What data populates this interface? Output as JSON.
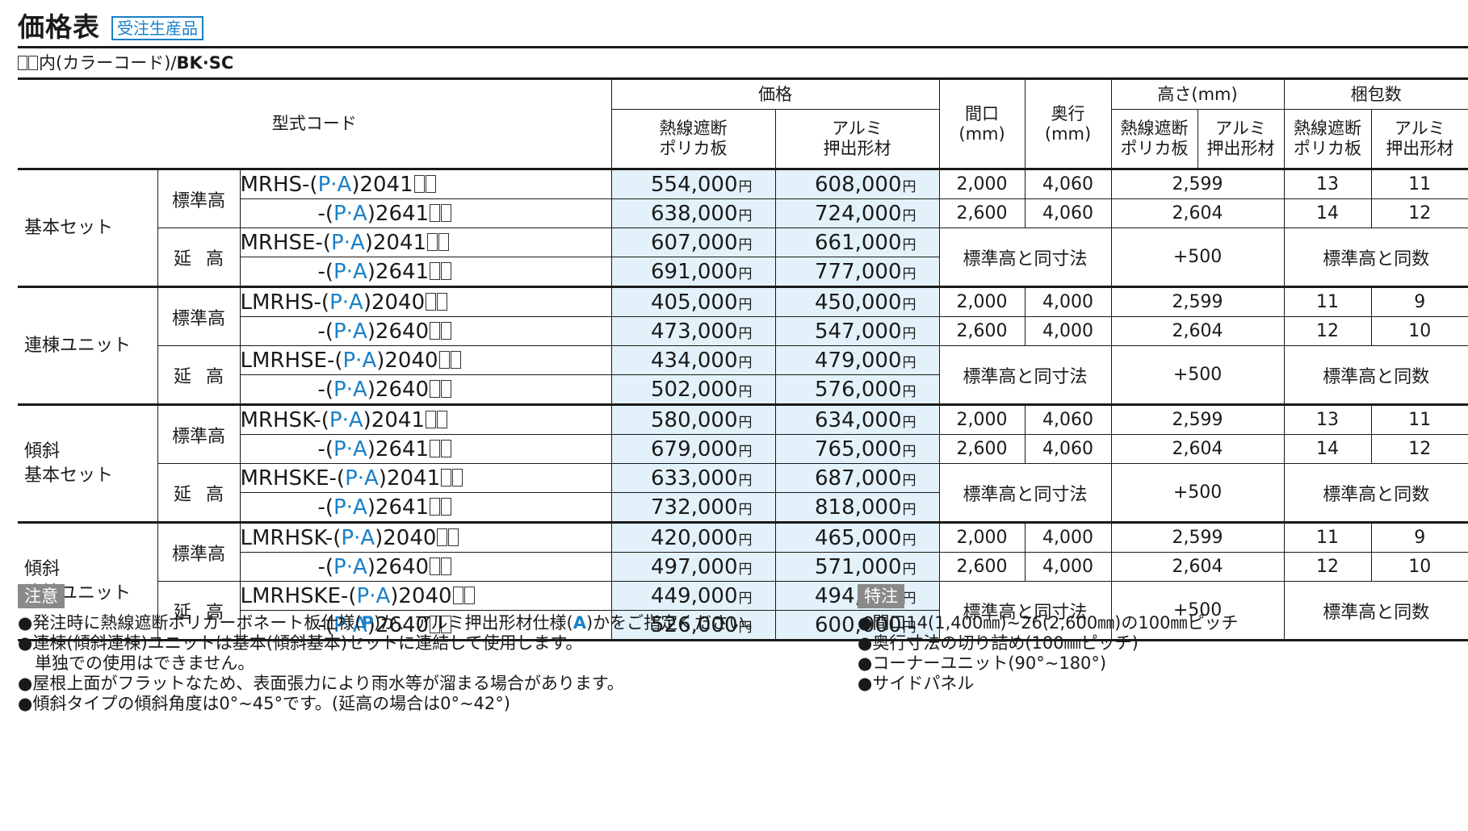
{
  "title": "価格表",
  "badge": "受注生産品",
  "color_note": {
    "prefix": "内(カラーコード)/",
    "codes": "BK·SC"
  },
  "header": {
    "model": "型式コード",
    "price": "価格",
    "col_poly": "熱線遮断ポリカ板",
    "col_poly_l1": "熱線遮断",
    "col_poly_l2": "ポリカ板",
    "col_alu_l1": "アルミ",
    "col_alu_l2": "押出形材",
    "width_l1": "間口",
    "width_l2": "(mm)",
    "depth_l1": "奥行",
    "depth_l2": "(mm)",
    "height": "高さ(mm)",
    "pack": "梱包数"
  },
  "groups": [
    {
      "category": "基本セット",
      "subs": [
        {
          "label": "標準高",
          "rows": [
            {
              "prefix": "MRHS-",
              "size": "2041",
              "poly": "554,000",
              "alu": "608,000",
              "w": "2,000",
              "d": "4,060",
              "h": "2,599",
              "pp": "13",
              "pa": "11"
            },
            {
              "prefix": "-",
              "size": "2641",
              "poly": "638,000",
              "alu": "724,000",
              "w": "2,600",
              "d": "4,060",
              "h": "2,604",
              "pp": "14",
              "pa": "12"
            }
          ]
        },
        {
          "label": "延高",
          "merged": {
            "dims": "標準高と同寸法",
            "h": "+500",
            "pack": "標準高と同数"
          },
          "rows": [
            {
              "prefix": "MRHSE-",
              "size": "2041",
              "poly": "607,000",
              "alu": "661,000"
            },
            {
              "prefix": "-",
              "size": "2641",
              "poly": "691,000",
              "alu": "777,000"
            }
          ]
        }
      ]
    },
    {
      "category": "連棟ユニット",
      "subs": [
        {
          "label": "標準高",
          "rows": [
            {
              "prefix": "LMRHS-",
              "size": "2040",
              "poly": "405,000",
              "alu": "450,000",
              "w": "2,000",
              "d": "4,000",
              "h": "2,599",
              "pp": "11",
              "pa": "9"
            },
            {
              "prefix": "-",
              "size": "2640",
              "poly": "473,000",
              "alu": "547,000",
              "w": "2,600",
              "d": "4,000",
              "h": "2,604",
              "pp": "12",
              "pa": "10"
            }
          ]
        },
        {
          "label": "延高",
          "merged": {
            "dims": "標準高と同寸法",
            "h": "+500",
            "pack": "標準高と同数"
          },
          "rows": [
            {
              "prefix": "LMRHSE-",
              "size": "2040",
              "poly": "434,000",
              "alu": "479,000"
            },
            {
              "prefix": "-",
              "size": "2640",
              "poly": "502,000",
              "alu": "576,000"
            }
          ]
        }
      ]
    },
    {
      "category": "傾斜 基本セット",
      "category_l1": "傾斜",
      "category_l2": "基本セット",
      "subs": [
        {
          "label": "標準高",
          "rows": [
            {
              "prefix": "MRHSK-",
              "size": "2041",
              "poly": "580,000",
              "alu": "634,000",
              "w": "2,000",
              "d": "4,060",
              "h": "2,599",
              "pp": "13",
              "pa": "11"
            },
            {
              "prefix": "-",
              "size": "2641",
              "poly": "679,000",
              "alu": "765,000",
              "w": "2,600",
              "d": "4,060",
              "h": "2,604",
              "pp": "14",
              "pa": "12"
            }
          ]
        },
        {
          "label": "延高",
          "merged": {
            "dims": "標準高と同寸法",
            "h": "+500",
            "pack": "標準高と同数"
          },
          "rows": [
            {
              "prefix": "MRHSKE-",
              "size": "2041",
              "poly": "633,000",
              "alu": "687,000"
            },
            {
              "prefix": "-",
              "size": "2641",
              "poly": "732,000",
              "alu": "818,000"
            }
          ]
        }
      ]
    },
    {
      "category": "傾斜 連棟ユニット",
      "category_l1": "傾斜",
      "category_l2": "連棟ユニット",
      "subs": [
        {
          "label": "標準高",
          "rows": [
            {
              "prefix": "LMRHSK-",
              "size": "2040",
              "poly": "420,000",
              "alu": "465,000",
              "w": "2,000",
              "d": "4,000",
              "h": "2,599",
              "pp": "11",
              "pa": "9"
            },
            {
              "prefix": "-",
              "size": "2640",
              "poly": "497,000",
              "alu": "571,000",
              "w": "2,600",
              "d": "4,000",
              "h": "2,604",
              "pp": "12",
              "pa": "10"
            }
          ]
        },
        {
          "label": "延高",
          "merged": {
            "dims": "標準高と同寸法",
            "h": "+500",
            "pack": "標準高と同数"
          },
          "rows": [
            {
              "prefix": "LMRHSKE-",
              "size": "2040",
              "poly": "449,000",
              "alu": "494,000"
            },
            {
              "prefix": "-",
              "size": "2640",
              "poly": "526,000",
              "alu": "600,000"
            }
          ]
        }
      ]
    }
  ],
  "model_pa": {
    "open": "(",
    "p": "P",
    "dot": "·",
    "a": "A",
    "close": ")"
  },
  "yen": "円",
  "notes": {
    "tag": "注意",
    "l1_a": "●発注時に熱線遮断ポリカーボネート板仕様(",
    "l1_p": "P",
    "l1_b": ")か、アルミ押出形材仕様(",
    "l1_a2": "A",
    "l1_c": ")かをご指定ください。",
    "l2": "●連棟(傾斜連棟)ユニットは基本(傾斜基本)セットに連結して使用します。",
    "l3": "単独での使用はできません。",
    "l4": "●屋根上面がフラットなため、表面張力により雨水等が溜まる場合があります。",
    "l5": "●傾斜タイプの傾斜角度は0°~45°です。(延高の場合は0°~42°)"
  },
  "special": {
    "tag": "特注",
    "items": [
      "●間口14(1,400㎜)~26(2,600㎜)の100㎜ピッチ",
      "●奥行寸法の切り詰め(100㎜ピッチ)",
      "●コーナーユニット(90°~180°)",
      "●サイドパネル"
    ]
  }
}
